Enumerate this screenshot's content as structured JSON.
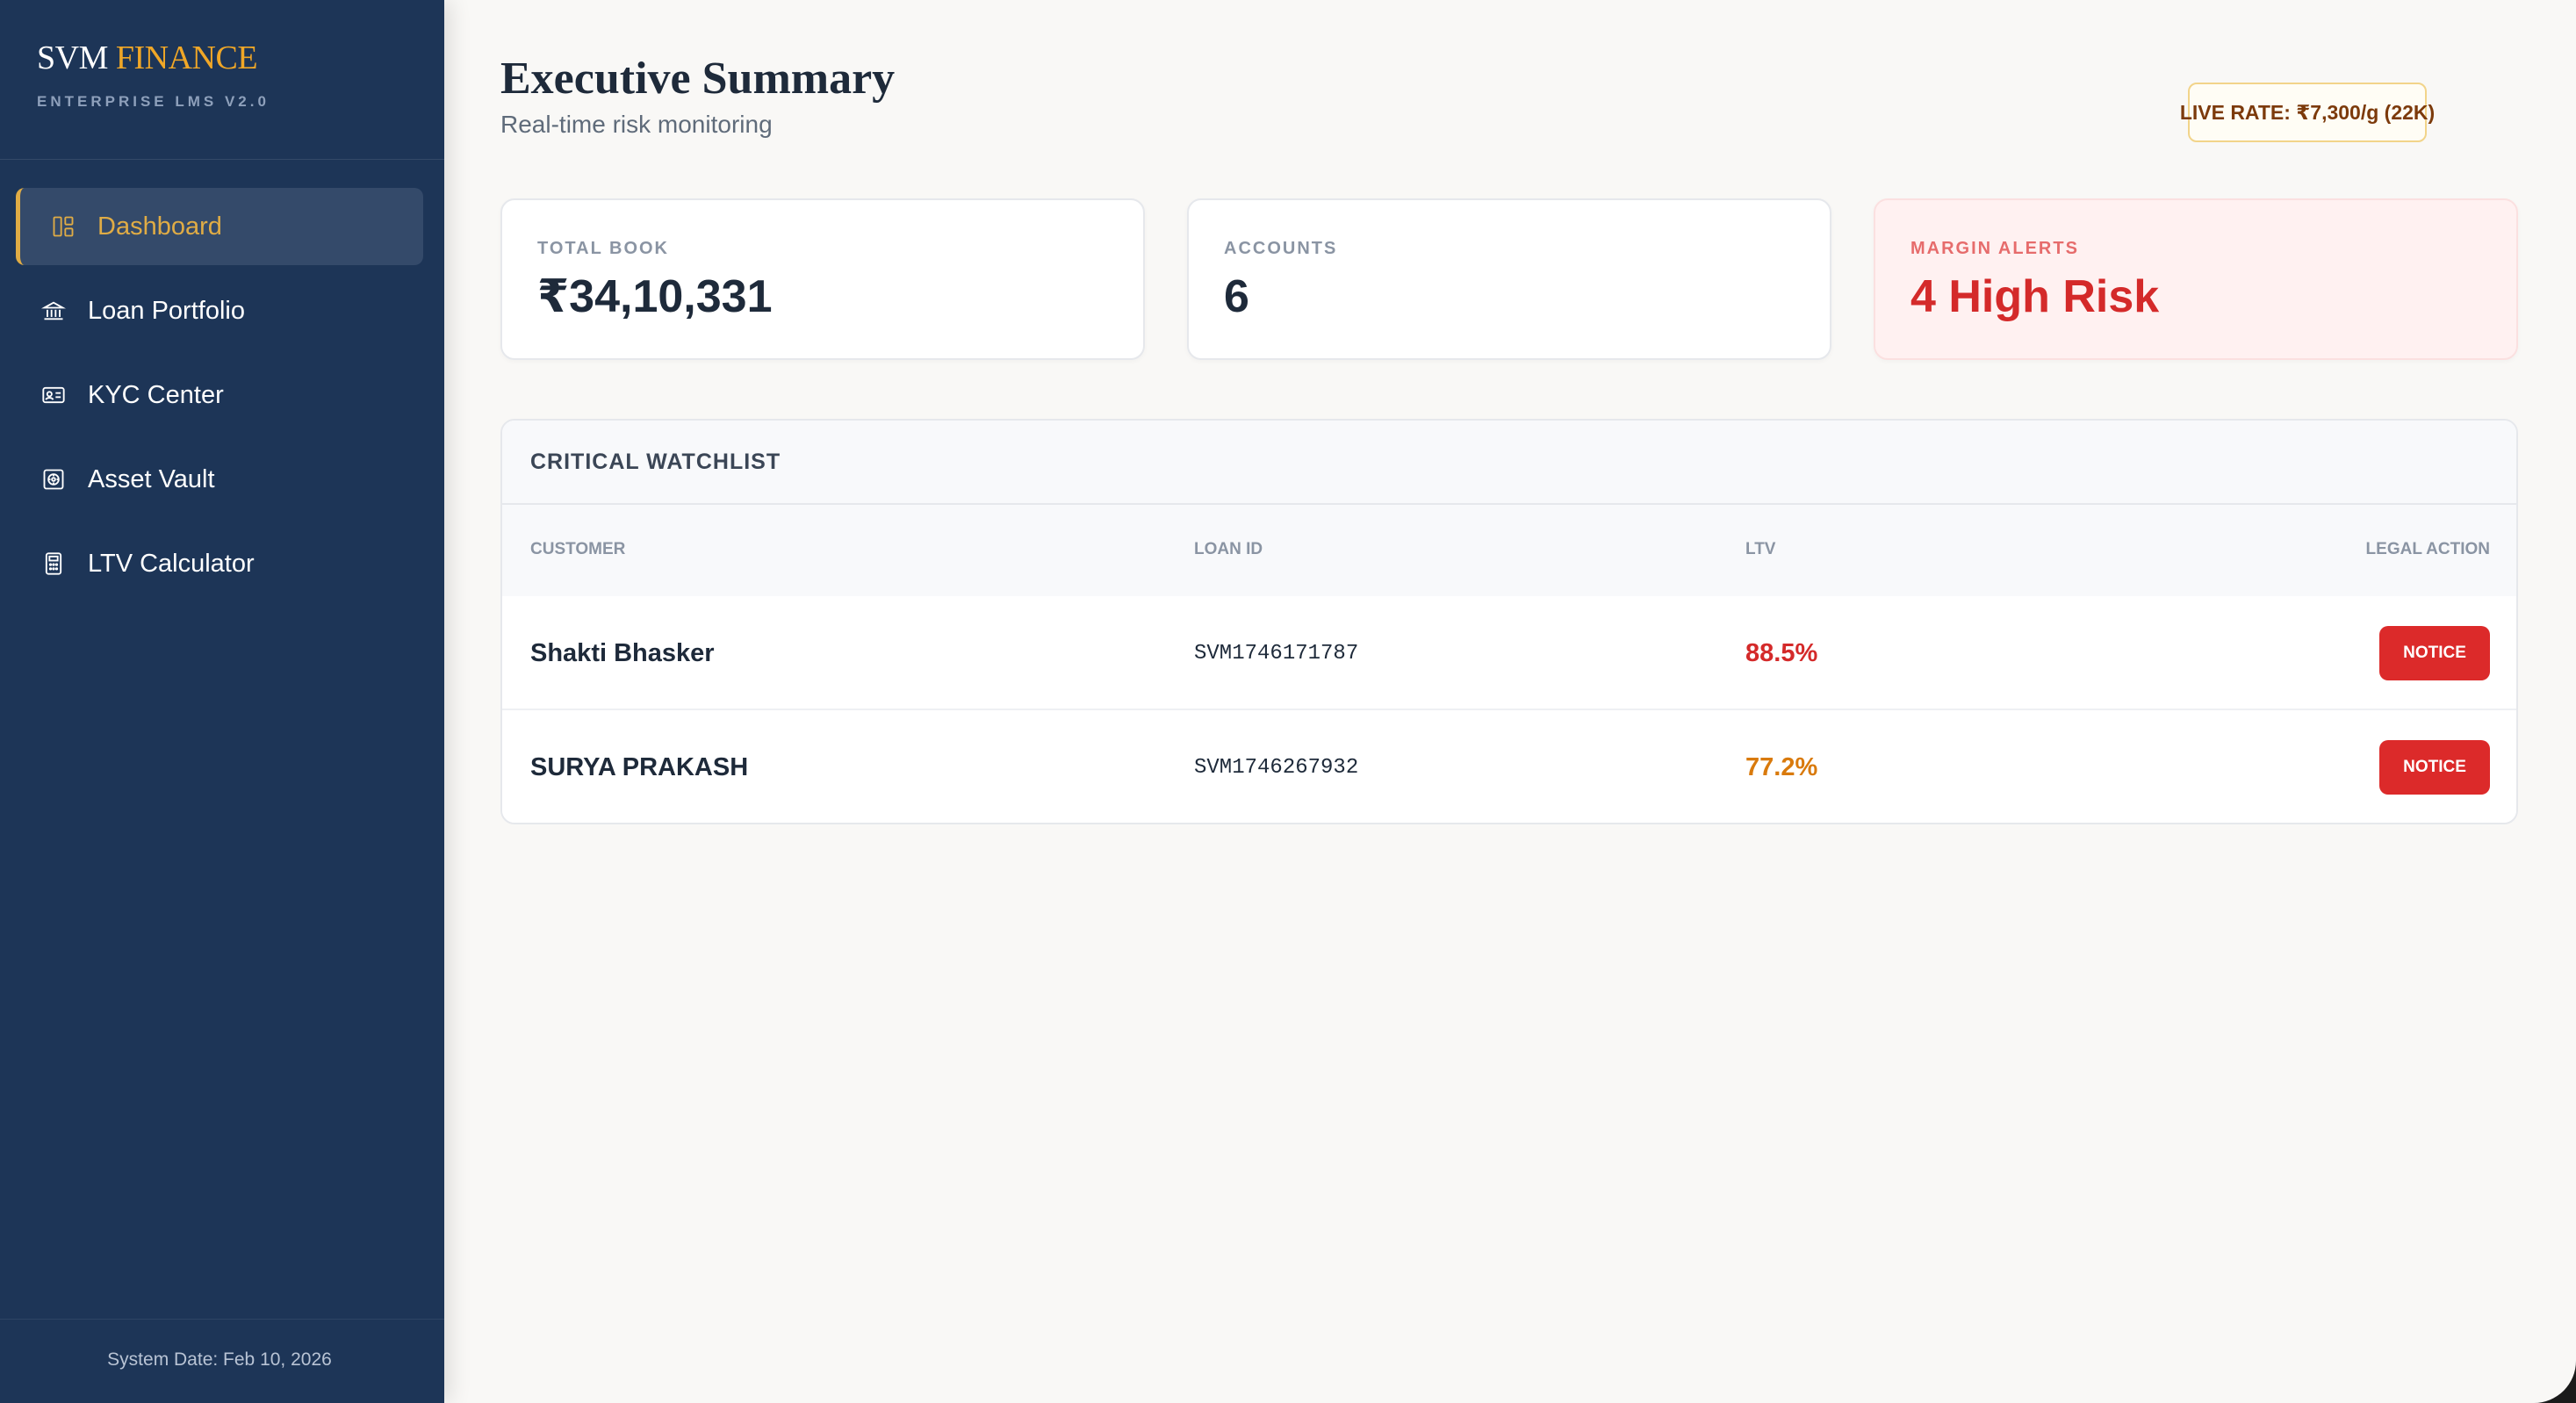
{
  "sidebar": {
    "brand": {
      "name_primary": "SVM",
      "name_accent": "FINANCE",
      "subtitle": "ENTERPRISE LMS V2.0"
    },
    "items": [
      {
        "label": "Dashboard",
        "icon": "dashboard-icon",
        "active": true
      },
      {
        "label": "Loan Portfolio",
        "icon": "bank-icon",
        "active": false
      },
      {
        "label": "KYC Center",
        "icon": "id-card-icon",
        "active": false
      },
      {
        "label": "Asset Vault",
        "icon": "vault-icon",
        "active": false
      },
      {
        "label": "LTV Calculator",
        "icon": "calculator-icon",
        "active": false
      }
    ],
    "system_date": "System Date: Feb 10, 2026"
  },
  "header": {
    "title": "Executive Summary",
    "subtitle": "Real-time risk monitoring",
    "live_rate": "LIVE RATE: ₹7,300/g (22K)"
  },
  "stats": [
    {
      "label": "TOTAL BOOK",
      "value": "₹34,10,331"
    },
    {
      "label": "ACCOUNTS",
      "value": "6"
    },
    {
      "label": "MARGIN ALERTS",
      "value": "4 High Risk"
    }
  ],
  "watchlist": {
    "title": "CRITICAL WATCHLIST",
    "columns": [
      "CUSTOMER",
      "LOAN ID",
      "LTV",
      "LEGAL ACTION"
    ],
    "rows": [
      {
        "customer": "Shakti Bhasker",
        "loan_id": "SVM1746171787",
        "ltv": "88.5%",
        "ltv_color": "#d42a2a",
        "action": "NOTICE"
      },
      {
        "customer": "SURYA PRAKASH",
        "loan_id": "SVM1746267932",
        "ltv": "77.2%",
        "ltv_color": "#d97a0c",
        "action": "NOTICE"
      }
    ]
  },
  "colors": {
    "sidebar_bg": "#1d3557",
    "accent_gold": "#e0ac45",
    "alert_red": "#dc2a2a",
    "warn_orange": "#d97a0c"
  }
}
